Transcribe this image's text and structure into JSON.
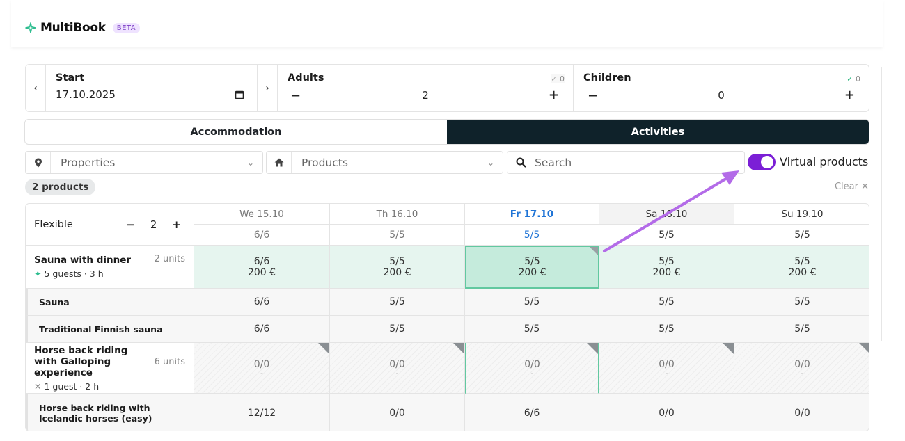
{
  "app": {
    "name": "MultiBook",
    "badge": "BETA"
  },
  "occupancy": {
    "start_label": "Start",
    "start_date": "17.10.2025",
    "adults_label": "Adults",
    "adults_value": "2",
    "adults_check": "0",
    "children_label": "Children",
    "children_value": "0",
    "children_check": "0"
  },
  "tabs": [
    {
      "label": "Accommodation",
      "active": false
    },
    {
      "label": "Activities",
      "active": true
    }
  ],
  "filters": {
    "properties_placeholder": "Properties",
    "products_placeholder": "Products",
    "search_placeholder": "Search",
    "virtual_products_label": "Virtual products",
    "virtual_products_on": true
  },
  "summary": {
    "count_label": "2 products",
    "clear_label": "Clear ✕"
  },
  "grid": {
    "flexible_label": "Flexible",
    "flexible_value": "2",
    "days": [
      {
        "label": "We 15.10",
        "avail": "6/6"
      },
      {
        "label": "Th 16.10",
        "avail": "5/5"
      },
      {
        "label": "Fr 17.10",
        "avail": "5/5"
      },
      {
        "label": "Sa 18.10",
        "avail": "5/5"
      },
      {
        "label": "Su 19.10",
        "avail": "5/5"
      }
    ],
    "rows": [
      {
        "name": "Sauna with dinner",
        "units": "2 units",
        "meta": "5 guests · 3 h",
        "cells": [
          {
            "avail": "6/6",
            "price": "200 €"
          },
          {
            "avail": "5/5",
            "price": "200 €"
          },
          {
            "avail": "5/5",
            "price": "200 €"
          },
          {
            "avail": "5/5",
            "price": "200 €"
          },
          {
            "avail": "5/5",
            "price": "200 €"
          }
        ]
      },
      {
        "name": "Sauna",
        "cells": [
          "6/6",
          "5/5",
          "5/5",
          "5/5",
          "5/5"
        ]
      },
      {
        "name": "Traditional Finnish sauna",
        "cells": [
          "6/6",
          "5/5",
          "5/5",
          "5/5",
          "5/5"
        ]
      },
      {
        "name": "Horse back riding with Galloping experience",
        "units": "6 units",
        "meta": "1 guest · 2 h",
        "cells": [
          {
            "avail": "0/0",
            "price": "-"
          },
          {
            "avail": "0/0",
            "price": "-"
          },
          {
            "avail": "0/0",
            "price": "-"
          },
          {
            "avail": "0/0",
            "price": "-"
          },
          {
            "avail": "0/0",
            "price": "-"
          }
        ]
      },
      {
        "name": "Horse back riding with Icelandic horses (easy)",
        "cells": [
          "12/12",
          "0/0",
          "6/6",
          "0/0",
          "0/0"
        ]
      }
    ]
  },
  "colors": {
    "accent": "#7b1fd6",
    "today": "#1f74d6",
    "available": "#e6f5ef",
    "selected": "#c5ebdc",
    "tab_active": "#0f222a"
  }
}
